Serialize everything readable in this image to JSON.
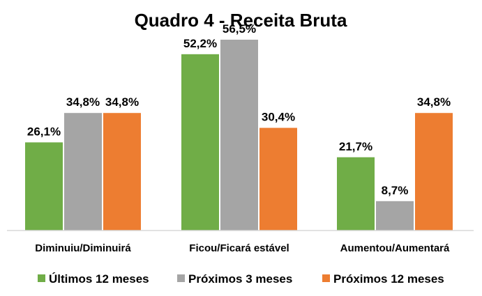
{
  "chart_data": {
    "type": "bar",
    "title": "Quadro 4 - Receita Bruta",
    "categories": [
      "Diminuiu/Diminuirá",
      "Ficou/Ficará estável",
      "Aumentou/Aumentará"
    ],
    "series": [
      {
        "name": "Últimos 12 meses",
        "color": "#70ad47",
        "values": [
          26.1,
          52.2,
          21.7
        ],
        "labels": [
          "26,1%",
          "52,2%",
          "21,7%"
        ]
      },
      {
        "name": "Próximos 3 meses",
        "color": "#a5a5a5",
        "values": [
          34.8,
          56.5,
          8.7
        ],
        "labels": [
          "34,8%",
          "56,5%",
          "8,7%"
        ]
      },
      {
        "name": "Próximos 12 meses",
        "color": "#ed7d31",
        "values": [
          34.8,
          30.4,
          34.8
        ],
        "labels": [
          "34,8%",
          "30,4%",
          "34,8%"
        ]
      }
    ],
    "xlabel": "",
    "ylabel": "",
    "ylim": [
      0,
      60
    ],
    "grid": false,
    "legend": "bottom"
  }
}
